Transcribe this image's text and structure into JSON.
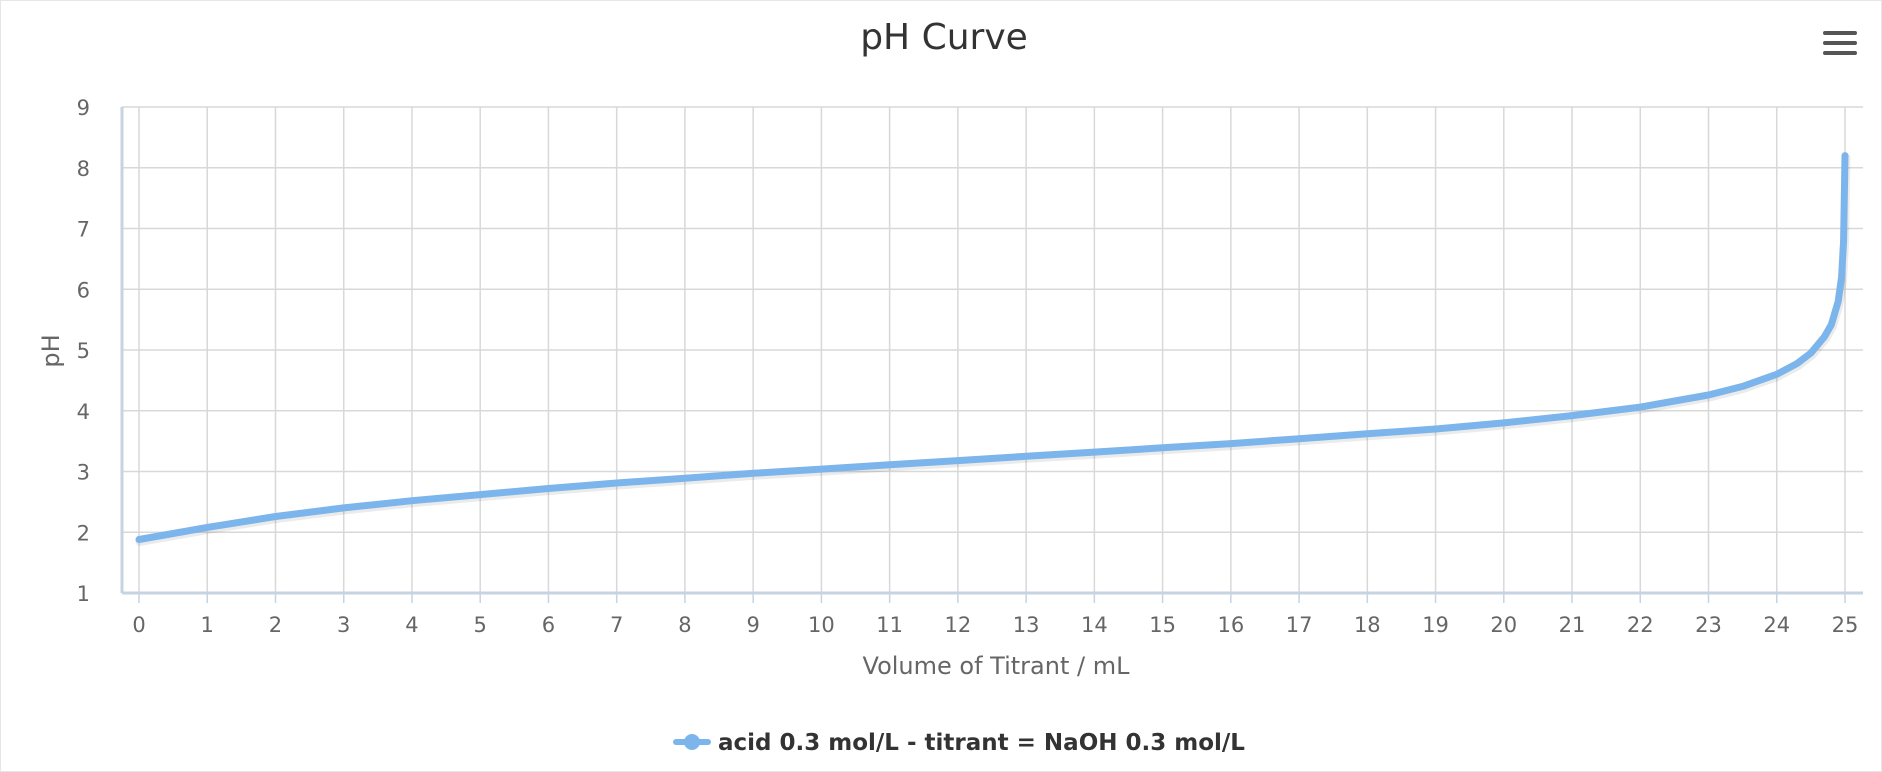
{
  "chart_data": {
    "type": "line",
    "title": "pH Curve",
    "xlabel": "Volume of Titrant / mL",
    "ylabel": "pH",
    "xlim": [
      0,
      25
    ],
    "ylim": [
      1,
      9
    ],
    "x_ticks": [
      "0",
      "1",
      "2",
      "3",
      "4",
      "5",
      "6",
      "7",
      "8",
      "9",
      "10",
      "11",
      "12",
      "13",
      "14",
      "15",
      "16",
      "17",
      "18",
      "19",
      "20",
      "21",
      "22",
      "23",
      "24",
      "25"
    ],
    "y_ticks": [
      "1",
      "2",
      "3",
      "4",
      "5",
      "6",
      "7",
      "8",
      "9"
    ],
    "grid": true,
    "legend_position": "bottom",
    "series": [
      {
        "name": "acid 0.3 mol/L - titrant = NaOH 0.3 mol/L",
        "color": "#7cb5ec",
        "x": [
          0,
          0.5,
          1,
          2,
          3,
          4,
          5,
          6,
          7,
          8,
          9,
          10,
          11,
          12,
          13,
          14,
          15,
          16,
          17,
          18,
          19,
          20,
          21,
          22,
          23,
          23.5,
          24,
          24.3,
          24.5,
          24.7,
          24.8,
          24.9,
          24.95,
          24.98,
          25
        ],
        "y": [
          1.88,
          1.98,
          2.08,
          2.26,
          2.4,
          2.52,
          2.62,
          2.72,
          2.81,
          2.89,
          2.97,
          3.04,
          3.11,
          3.18,
          3.25,
          3.32,
          3.39,
          3.46,
          3.54,
          3.62,
          3.7,
          3.8,
          3.92,
          4.06,
          4.26,
          4.4,
          4.6,
          4.78,
          4.95,
          5.22,
          5.42,
          5.8,
          6.2,
          6.8,
          8.2
        ]
      }
    ]
  },
  "toolbar": {
    "menu_icon": "hamburger-menu-icon"
  }
}
